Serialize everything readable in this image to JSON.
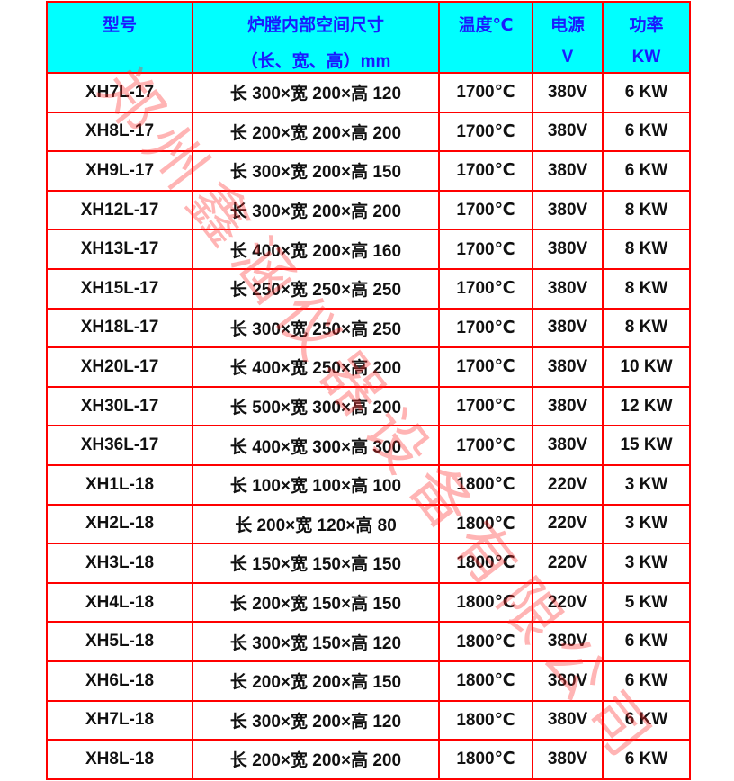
{
  "header": {
    "model": "型号",
    "size_line1": "炉膛内部空间尺寸",
    "size_line2": "（长、宽、高）mm",
    "temp": "温度℃",
    "power_line1": "电源",
    "power_line2": "V",
    "rate_line1": "功率",
    "rate_line2": "KW"
  },
  "rows": [
    [
      "XH7L-17",
      "长 300×宽 200×高 120",
      "1700℃",
      "380V",
      "6 KW"
    ],
    [
      "XH8L-17",
      "长 200×宽 200×高 200",
      "1700℃",
      "380V",
      "6 KW"
    ],
    [
      "XH9L-17",
      "长 300×宽 200×高 150",
      "1700℃",
      "380V",
      "6 KW"
    ],
    [
      "XH12L-17",
      "长 300×宽 200×高 200",
      "1700℃",
      "380V",
      "8 KW"
    ],
    [
      "XH13L-17",
      "长 400×宽 200×高 160",
      "1700℃",
      "380V",
      "8 KW"
    ],
    [
      "XH15L-17",
      "长 250×宽 250×高 250",
      "1700℃",
      "380V",
      "8 KW"
    ],
    [
      "XH18L-17",
      "长 300×宽 250×高 250",
      "1700℃",
      "380V",
      "8 KW"
    ],
    [
      "XH20L-17",
      "长 400×宽 250×高 200",
      "1700℃",
      "380V",
      "10 KW"
    ],
    [
      "XH30L-17",
      "长 500×宽 300×高 200",
      "1700℃",
      "380V",
      "12 KW"
    ],
    [
      "XH36L-17",
      "长 400×宽 300×高 300",
      "1700℃",
      "380V",
      "15 KW"
    ],
    [
      "XH1L-18",
      "长 100×宽 100×高 100",
      "1800℃",
      "220V",
      "3 KW"
    ],
    [
      "XH2L-18",
      "长 200×宽 120×高 80",
      "1800℃",
      "220V",
      "3 KW"
    ],
    [
      "XH3L-18",
      "长 150×宽 150×高 150",
      "1800℃",
      "220V",
      "3 KW"
    ],
    [
      "XH4L-18",
      "长 200×宽 150×高 150",
      "1800℃",
      "220V",
      "5 KW"
    ],
    [
      "XH5L-18",
      "长 300×宽 150×高 120",
      "1800℃",
      "380V",
      "6 KW"
    ],
    [
      "XH6L-18",
      "长 200×宽 200×高 150",
      "1800℃",
      "380V",
      "6 KW"
    ],
    [
      "XH7L-18",
      "长 300×宽 200×高 120",
      "1800℃",
      "380V",
      "6 KW"
    ],
    [
      "XH8L-18",
      "长 200×宽 200×高 200",
      "1800℃",
      "380V",
      "6 KW"
    ]
  ],
  "watermark": "郑州鑫涵仪器设备有限公司",
  "colors": {
    "border": "#ff0000",
    "header_bg": "#00ffff",
    "header_text": "#1a1aff"
  }
}
